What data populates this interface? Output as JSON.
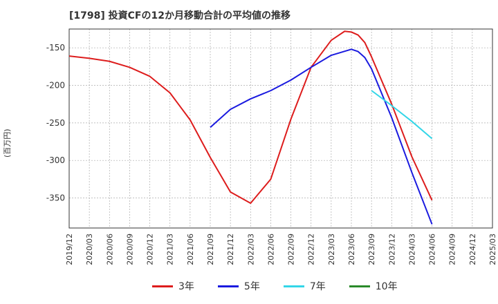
{
  "title": "[1798]  投資CFの12か月移動合計の平均値の推移",
  "unit_label": "(百万円)",
  "chart_data": {
    "type": "line",
    "title": "[1798]  投資CFの12か月移動合計の平均値の推移",
    "xlabel": "",
    "ylabel": "(百万円)",
    "ylim": [
      -390,
      -125
    ],
    "yticks": [
      -150,
      -200,
      -250,
      -300,
      -350
    ],
    "xticks": [
      "2019/12",
      "2020/03",
      "2020/06",
      "2020/09",
      "2020/12",
      "2021/03",
      "2021/06",
      "2021/09",
      "2021/12",
      "2022/03",
      "2022/06",
      "2022/09",
      "2022/12",
      "2023/03",
      "2023/06",
      "2023/09",
      "2023/12",
      "2024/03",
      "2024/06",
      "2024/09",
      "2024/12",
      "2025/03"
    ],
    "grid": true,
    "legend_position": "bottom",
    "series": [
      {
        "name": "3年",
        "color": "#dd1c1c",
        "points": [
          [
            "2019/12",
            -161
          ],
          [
            "2020/03",
            -164
          ],
          [
            "2020/06",
            -168
          ],
          [
            "2020/09",
            -176
          ],
          [
            "2020/12",
            -188
          ],
          [
            "2021/03",
            -210
          ],
          [
            "2021/06",
            -246
          ],
          [
            "2021/09",
            -296
          ],
          [
            "2021/12",
            -342
          ],
          [
            "2022/03",
            -357
          ],
          [
            "2022/06",
            -325
          ],
          [
            "2022/09",
            -245
          ],
          [
            "2022/12",
            -176
          ],
          [
            "2023/03",
            -140
          ],
          [
            "2023/05",
            -128
          ],
          [
            "2023/06",
            -129
          ],
          [
            "2023/07",
            -133
          ],
          [
            "2023/08",
            -143
          ],
          [
            "2023/09",
            -162
          ],
          [
            "2023/12",
            -225
          ],
          [
            "2024/03",
            -295
          ],
          [
            "2024/06",
            -353
          ]
        ]
      },
      {
        "name": "5年",
        "color": "#1a1adf",
        "points": [
          [
            "2021/09",
            -256
          ],
          [
            "2021/12",
            -232
          ],
          [
            "2022/03",
            -218
          ],
          [
            "2022/06",
            -207
          ],
          [
            "2022/09",
            -193
          ],
          [
            "2022/12",
            -176
          ],
          [
            "2023/03",
            -160
          ],
          [
            "2023/06",
            -152
          ],
          [
            "2023/07",
            -155
          ],
          [
            "2023/08",
            -163
          ],
          [
            "2023/09",
            -178
          ],
          [
            "2023/12",
            -243
          ],
          [
            "2024/03",
            -316
          ],
          [
            "2024/06",
            -385
          ]
        ]
      },
      {
        "name": "7年",
        "color": "#33d6e8",
        "points": [
          [
            "2023/09",
            -207
          ],
          [
            "2023/12",
            -227
          ],
          [
            "2024/03",
            -248
          ],
          [
            "2024/06",
            -271
          ]
        ]
      },
      {
        "name": "10年",
        "color": "#2a8a2a",
        "points": []
      }
    ]
  }
}
